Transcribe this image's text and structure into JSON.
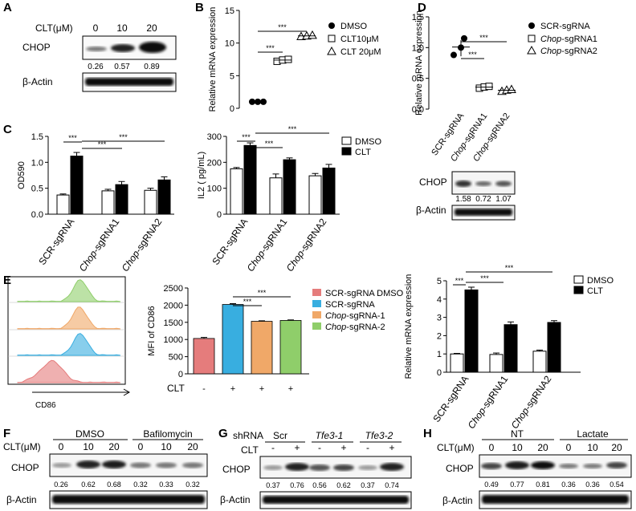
{
  "panel_letters": [
    "A",
    "B",
    "C",
    "D",
    "E",
    "F",
    "G",
    "H"
  ],
  "panelA": {
    "clt_label": "CLT(μM)",
    "doses": [
      "0",
      "10",
      "20"
    ],
    "bands": [
      "CHOP",
      "β-Actin"
    ],
    "quant": [
      "0.26",
      "0.57",
      "0.89"
    ]
  },
  "panelF": {
    "groups": [
      "DMSO",
      "Bafilomycin"
    ],
    "clt_label": "CLT(μM)",
    "doses": [
      "0",
      "10",
      "20",
      "0",
      "10",
      "20"
    ],
    "bands": [
      "CHOP",
      "β-Actin"
    ],
    "quant": [
      "0.26",
      "0.62",
      "0.68",
      "0.32",
      "0.33",
      "0.32"
    ]
  },
  "panelG": {
    "shrna_label": "shRNA",
    "groups": [
      "Scr",
      "Tfe3-1",
      "Tfe3-2"
    ],
    "clt_label": "CLT",
    "signs": [
      "-",
      "+",
      "-",
      "+",
      "-",
      "+"
    ],
    "bands": [
      "CHOP",
      "β-Actin"
    ],
    "quant": [
      "0.37",
      "0.76",
      "0.56",
      "0.62",
      "0.37",
      "0.74"
    ]
  },
  "panelH": {
    "groups": [
      "NT",
      "Lactate"
    ],
    "clt_label": "CLT(μM)",
    "doses": [
      "0",
      "10",
      "20",
      "0",
      "10",
      "20"
    ],
    "bands": [
      "CHOP",
      "β-Actin"
    ],
    "quant": [
      "0.49",
      "0.77",
      "0.81",
      "0.36",
      "0.36",
      "0.54"
    ]
  },
  "panelD_blot": {
    "lanes": [
      "SCR-sgRNA",
      "Chop-sgRNA1",
      "Chop-sgRNA2"
    ],
    "bands": [
      "CHOP",
      "β-Actin"
    ],
    "quant": [
      "1.58",
      "0.72",
      "1.07"
    ]
  },
  "panelE_flow": {
    "xlabel": "CD86",
    "colors": [
      "#e57c7c",
      "#38aee0",
      "#f0a868",
      "#8fce6a"
    ]
  },
  "sig": "***",
  "chart_data": [
    {
      "id": "B",
      "type": "scatter",
      "ylabel": "Relative mRNA expression",
      "ylim": [
        0,
        15
      ],
      "yticks": [
        "0",
        "5",
        "10",
        "15"
      ],
      "series": [
        {
          "name": "DMSO",
          "marker": "circle-filled",
          "x": 0,
          "values": [
            1.0,
            1.0,
            1.0
          ]
        },
        {
          "name": "CLT10μM",
          "marker": "square-open",
          "x": 1,
          "values": [
            7.2,
            7.4,
            7.5
          ]
        },
        {
          "name": "CLT 20μM",
          "marker": "triangle-open",
          "x": 2,
          "values": [
            11.0,
            11.1,
            11.2
          ]
        }
      ]
    },
    {
      "id": "D",
      "type": "scatter",
      "ylabel": "Relative mRNA expression",
      "ylim": [
        0,
        1.5
      ],
      "yticks": [
        "0.0",
        "0.5",
        "1.0",
        "1.5"
      ],
      "categories": [
        "SCR-sgRNA",
        "Chop-sgRNA1",
        "Chop-sgRNA2"
      ],
      "series": [
        {
          "name": "SCR-sgRNA",
          "marker": "circle-filled",
          "x": 0,
          "values": [
            0.88,
            1.0,
            1.15
          ]
        },
        {
          "name": "Chop-sgRNA1",
          "marker": "square-open",
          "x": 1,
          "values": [
            0.34,
            0.36,
            0.37
          ]
        },
        {
          "name": "Chop-sgRNA2",
          "marker": "triangle-open",
          "x": 2,
          "values": [
            0.29,
            0.31,
            0.32
          ]
        }
      ]
    },
    {
      "id": "C1",
      "type": "bar",
      "ylabel": "OD590",
      "ylim": [
        0,
        1.5
      ],
      "yticks": [
        "0.0",
        "0.5",
        "1.0",
        "1.5"
      ],
      "categories": [
        "SCR-sgRNA",
        "Chop-sgRNA1",
        "Chop-sgRNA2"
      ],
      "series": [
        {
          "name": "DMSO",
          "values": [
            0.37,
            0.45,
            0.46
          ],
          "err": [
            0.02,
            0.03,
            0.04
          ]
        },
        {
          "name": "CLT",
          "values": [
            1.12,
            0.57,
            0.66
          ],
          "err": [
            0.07,
            0.06,
            0.06
          ]
        }
      ]
    },
    {
      "id": "C2",
      "type": "bar",
      "ylabel": "IL2 ( pg/mL)",
      "ylim": [
        0,
        300
      ],
      "yticks": [
        "0",
        "100",
        "200",
        "300"
      ],
      "categories": [
        "SCR-sgRNA",
        "Chop-sgRNA1",
        "Chop-sgRNA2"
      ],
      "series": [
        {
          "name": "DMSO",
          "values": [
            175,
            140,
            148
          ],
          "err": [
            5,
            15,
            9
          ]
        },
        {
          "name": "CLT",
          "values": [
            265,
            210,
            178
          ],
          "err": [
            10,
            7,
            14
          ]
        }
      ]
    },
    {
      "id": "E_mfi",
      "type": "bar",
      "ylabel": "MFI of CD86",
      "ylim": [
        0,
        2500
      ],
      "yticks": [
        "0",
        "500",
        "1000",
        "1500",
        "2000",
        "2500"
      ],
      "xlabel": "CLT",
      "signs": [
        "-",
        "+",
        "+",
        "+"
      ],
      "series": [
        {
          "name": "SCR-sgRNA DMSO",
          "color": "#e57c7c",
          "value": 1030,
          "err": 30
        },
        {
          "name": "SCR-sgRNA",
          "color": "#38aee0",
          "value": 2020,
          "err": 25
        },
        {
          "name": "Chop-sgRNA-1",
          "color": "#f0a868",
          "value": 1530,
          "err": 15
        },
        {
          "name": "Chop-sgRNA-2",
          "color": "#8fce6a",
          "value": 1555,
          "err": 15
        }
      ]
    },
    {
      "id": "E_mrna",
      "type": "bar",
      "ylabel": "Relative mRNA expression",
      "ylim": [
        0,
        5
      ],
      "yticks": [
        "0",
        "1",
        "2",
        "3",
        "4",
        "5"
      ],
      "categories": [
        "SCR-sgRNA",
        "Chop-sgRNA1",
        "Chop-sgRNA2"
      ],
      "series": [
        {
          "name": "DMSO",
          "values": [
            1.0,
            0.97,
            1.15
          ],
          "err": [
            0.03,
            0.08,
            0.06
          ]
        },
        {
          "name": "CLT",
          "values": [
            4.5,
            2.6,
            2.72
          ],
          "err": [
            0.15,
            0.15,
            0.1
          ]
        }
      ]
    }
  ]
}
